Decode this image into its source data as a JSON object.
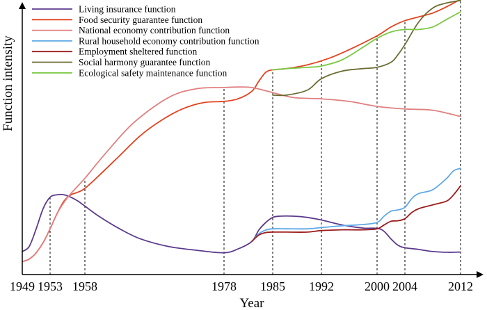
{
  "chart_data": {
    "type": "line",
    "xlabel": "Year",
    "ylabel": "Function intensity",
    "xlim": [
      1949,
      2014
    ],
    "ylim": [
      0,
      100
    ],
    "x_ticks": [
      1949,
      1953,
      1958,
      1978,
      1985,
      1992,
      2000,
      2004,
      2012
    ],
    "vertical_guides": [
      1953,
      1958,
      1978,
      1985,
      1992,
      2000,
      2004,
      2012
    ],
    "grid": false,
    "legend_position": "top-left",
    "series": [
      {
        "name": "Living insurance function",
        "color": "#5b3a8c",
        "x": [
          1949,
          1950,
          1951,
          1952,
          1953,
          1954,
          1955,
          1956,
          1957,
          1958,
          1960,
          1963,
          1966,
          1970,
          1974,
          1978,
          1980,
          1982,
          1983,
          1984,
          1985,
          1986,
          1988,
          1990,
          1992,
          1995,
          1998,
          2000,
          2001,
          2002,
          2003,
          2004,
          2006,
          2008,
          2010,
          2012
        ],
        "values": [
          5,
          7,
          14,
          22,
          26.5,
          27.5,
          27.5,
          26.5,
          25,
          23,
          19,
          14,
          10,
          7,
          5.5,
          4.5,
          6,
          9,
          13.5,
          16.5,
          18.5,
          19,
          19,
          18.5,
          17.5,
          15.5,
          14.3,
          14.2,
          13,
          10,
          7.5,
          6.5,
          5.8,
          5,
          4.7,
          4.8
        ]
      },
      {
        "name": "Food security guarantee function",
        "color": "#e3421e",
        "x": [
          1949,
          1950,
          1951,
          1952,
          1953,
          1954,
          1955,
          1956,
          1957,
          1958,
          1960,
          1963,
          1966,
          1969,
          1972,
          1975,
          1978,
          1980,
          1982,
          1983,
          1984,
          1985,
          1987,
          1990,
          1993,
          1996,
          2000,
          2002,
          2004,
          2006,
          2008,
          2010,
          2012
        ],
        "values": [
          1,
          2,
          4.5,
          8.5,
          14,
          20,
          25,
          27.5,
          28.5,
          30,
          35,
          43,
          51,
          57,
          61.5,
          64,
          64.5,
          65.5,
          68.5,
          72.5,
          76,
          77,
          77.5,
          79,
          81.5,
          85,
          90.5,
          94,
          96.5,
          98,
          99.5,
          102,
          105
        ]
      },
      {
        "name": "National economy contribution function",
        "color": "#e08080",
        "x": [
          1949,
          1950,
          1951,
          1952,
          1953,
          1954,
          1955,
          1956,
          1957,
          1958,
          1961,
          1965,
          1970,
          1974,
          1978,
          1980,
          1982,
          1985,
          1988,
          1992,
          1996,
          2000,
          2004,
          2008,
          2012
        ],
        "values": [
          1,
          2,
          4.5,
          8.5,
          14,
          20,
          24.5,
          28,
          31,
          34,
          44,
          56,
          66,
          69.5,
          70,
          70.2,
          70,
          68,
          66,
          65.5,
          64.5,
          62.5,
          61.5,
          61,
          58.5
        ]
      },
      {
        "name": "Rural household economy contribution function",
        "color": "#5fa8e6",
        "x": [
          1982,
          1983,
          1984,
          1985,
          1987,
          1990,
          1992,
          1995,
          1998,
          2000,
          2001,
          2002,
          2003,
          2004,
          2005,
          2006,
          2008,
          2010,
          2011,
          2012
        ],
        "values": [
          9,
          12,
          13.5,
          14,
          14,
          14,
          14.5,
          15.2,
          15.7,
          16.5,
          19,
          21,
          21.5,
          22.5,
          26,
          28,
          29.5,
          34,
          37,
          38
        ]
      },
      {
        "name": "Employment sheltered function",
        "color": "#9b1c1c",
        "x": [
          1982,
          1983,
          1984,
          1985,
          1987,
          1990,
          1992,
          1995,
          1998,
          2000,
          2001,
          2002,
          2003,
          2004,
          2005,
          2006,
          2008,
          2010,
          2011,
          2012
        ],
        "values": [
          9,
          11.5,
          12.5,
          12.7,
          12.7,
          12.7,
          13.3,
          13.6,
          13.6,
          14,
          15.5,
          17,
          17.2,
          18,
          20.5,
          22,
          23.5,
          25,
          27.5,
          31
        ]
      },
      {
        "name": "Social harmony guarantee function",
        "color": "#6b6b32",
        "x": [
          1985,
          1987,
          1990,
          1992,
          1995,
          1998,
          2000,
          2002,
          2003,
          2004,
          2006,
          2008,
          2010,
          2012
        ],
        "values": [
          67,
          67,
          69,
          73.5,
          76.5,
          77.5,
          78,
          80,
          83,
          87,
          96,
          101.5,
          103.5,
          104.5
        ]
      },
      {
        "name": "Ecological safety maintenance function",
        "color": "#7ac943",
        "x": [
          1985,
          1987,
          1990,
          1992,
          1995,
          1998,
          2000,
          2002,
          2004,
          2006,
          2008,
          2010,
          2012
        ],
        "values": [
          77,
          77.5,
          78,
          78.5,
          81,
          86,
          89.5,
          92,
          93,
          93,
          94,
          97,
          100
        ]
      }
    ]
  }
}
